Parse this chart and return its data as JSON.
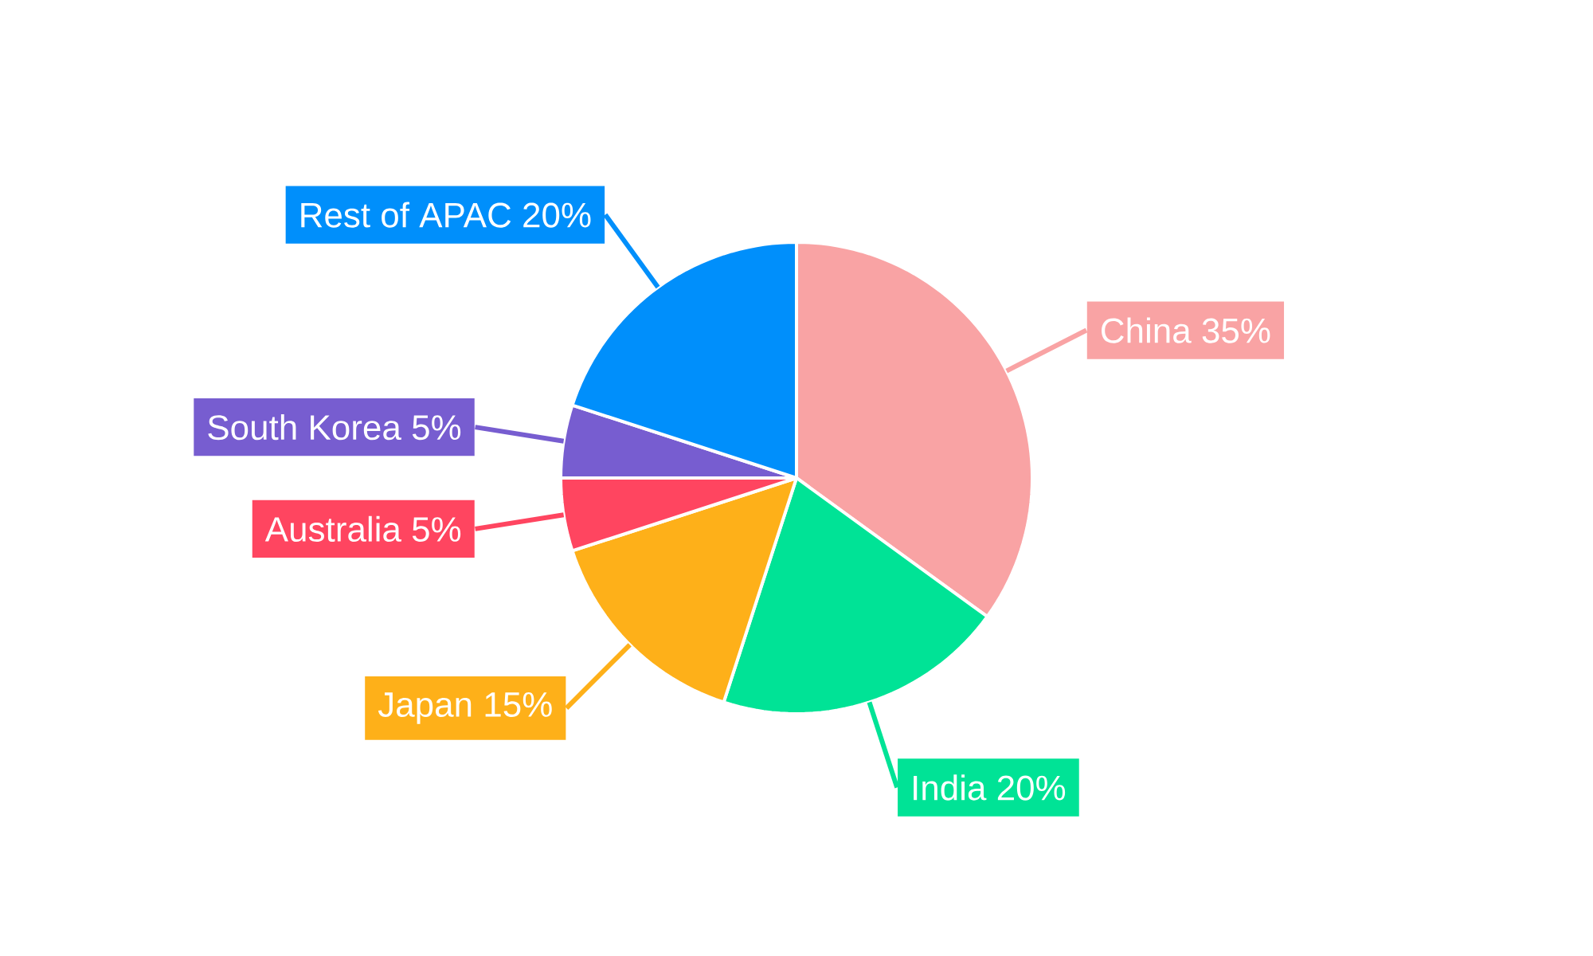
{
  "chart_data": {
    "type": "pie",
    "categories": [
      "China",
      "India",
      "Japan",
      "Australia",
      "South Korea",
      "Rest of APAC"
    ],
    "values": [
      35,
      20,
      15,
      5,
      5,
      20
    ],
    "value_labels": [
      "35%",
      "20%",
      "15%",
      "5%",
      "5%",
      "20%"
    ],
    "colors": [
      "#f9a3a4",
      "#00e396",
      "#feb019",
      "#ff4560",
      "#775dd0",
      "#008ffb"
    ]
  }
}
